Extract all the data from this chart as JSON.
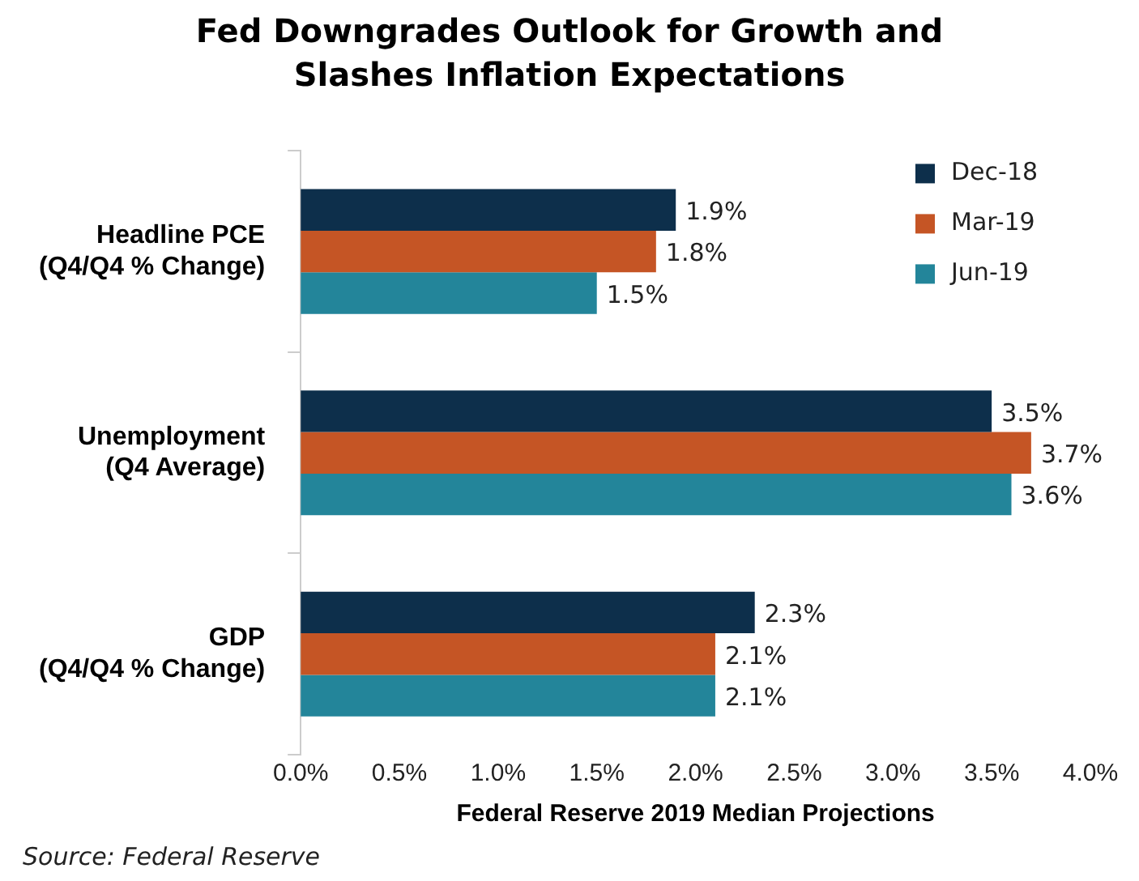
{
  "chart_data": {
    "type": "bar",
    "orientation": "horizontal",
    "title": "Fed Downgrades Outlook for Growth and Slashes Inflation Expectations",
    "xlabel": "Federal Reserve 2019 Median Projections",
    "categories": [
      "Headline PCE\n(Q4/Q4 % Change)",
      "Unemployment\n(Q4 Average)",
      "GDP\n(Q4/Q4 % Change)"
    ],
    "series": [
      {
        "name": "Dec-18",
        "color": "#0d2f4b",
        "values": [
          1.9,
          3.5,
          2.3
        ],
        "value_labels": [
          "1.9%",
          "3.5%",
          "2.3%"
        ]
      },
      {
        "name": "Mar-19",
        "color": "#c55525",
        "values": [
          1.8,
          3.7,
          2.1
        ],
        "value_labels": [
          "1.8%",
          "3.7%",
          "2.1%"
        ]
      },
      {
        "name": "Jun-19",
        "color": "#23859a",
        "values": [
          1.5,
          3.6,
          2.1
        ],
        "value_labels": [
          "1.5%",
          "3.6%",
          "2.1%"
        ]
      }
    ],
    "xlim": [
      0,
      4
    ],
    "xticks": [
      {
        "value": 0,
        "label": "0.0%"
      },
      {
        "value": 0.5,
        "label": "0.5%"
      },
      {
        "value": 1,
        "label": "1.0%"
      },
      {
        "value": 1.5,
        "label": "1.5%"
      },
      {
        "value": 2,
        "label": "2.0%"
      },
      {
        "value": 2.5,
        "label": "2.5%"
      },
      {
        "value": 3,
        "label": "3.0%"
      },
      {
        "value": 3.5,
        "label": "3.5%"
      },
      {
        "value": 4,
        "label": "4.0%"
      }
    ],
    "grid": false,
    "legend": "top right",
    "annotations": [
      "Source: Federal Reserve"
    ]
  }
}
